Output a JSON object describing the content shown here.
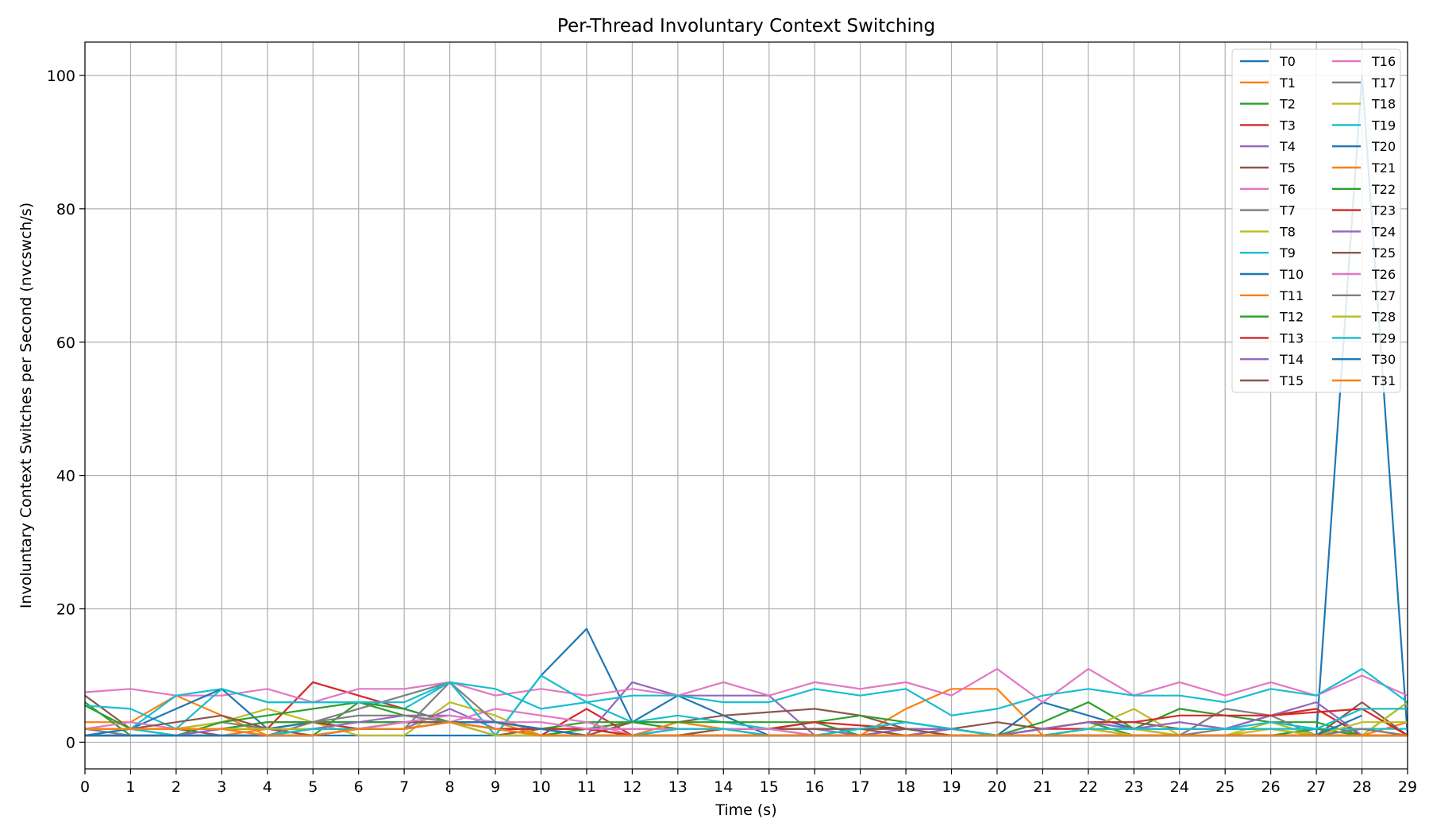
{
  "chart_data": {
    "type": "line",
    "title": "Per-Thread Involuntary Context Switching",
    "xlabel": "Time (s)",
    "ylabel": "Involuntary Context Switches per Second (nvcswch/s)",
    "xlim": [
      0,
      29
    ],
    "ylim": [
      -4,
      105
    ],
    "xticks": [
      0,
      1,
      2,
      3,
      4,
      5,
      6,
      7,
      8,
      9,
      10,
      11,
      12,
      13,
      14,
      15,
      16,
      17,
      18,
      19,
      20,
      21,
      22,
      23,
      24,
      25,
      26,
      27,
      28,
      29
    ],
    "yticks": [
      0,
      20,
      40,
      60,
      80,
      100
    ],
    "grid": true,
    "legend_position": "top-right",
    "legend_columns": 2,
    "x": [
      0,
      1,
      2,
      3,
      4,
      5,
      6,
      7,
      8,
      9,
      10,
      11,
      12,
      13,
      14,
      15,
      16,
      17,
      18,
      19,
      20,
      21,
      22,
      23,
      24,
      25,
      26,
      27,
      28,
      29
    ],
    "series": [
      {
        "name": "T0",
        "color": "#1f77b4",
        "values": [
          1,
          1,
          1,
          1,
          1,
          1,
          1,
          1,
          1,
          1,
          10,
          17,
          3,
          7,
          4,
          1,
          1,
          1,
          1,
          1,
          1,
          6,
          4,
          2,
          1,
          1,
          1,
          1,
          100,
          1
        ]
      },
      {
        "name": "T1",
        "color": "#ff7f0e",
        "values": [
          3,
          3,
          7,
          4,
          1,
          1,
          2,
          2,
          3,
          1,
          1,
          1,
          1,
          1,
          1,
          1,
          1,
          1,
          5,
          8,
          8,
          1,
          1,
          1,
          1,
          1,
          1,
          1,
          1,
          3
        ]
      },
      {
        "name": "T2",
        "color": "#2ca02c",
        "values": [
          6,
          1,
          1,
          1,
          1,
          1,
          6,
          4,
          3,
          2,
          1,
          2,
          3,
          2,
          2,
          2,
          3,
          1,
          1,
          2,
          1,
          3,
          6,
          2,
          5,
          4,
          3,
          3,
          1,
          6
        ]
      },
      {
        "name": "T3",
        "color": "#d62728",
        "values": [
          2,
          2,
          2,
          2,
          2,
          9,
          7,
          5,
          3,
          2,
          1,
          5,
          1,
          1,
          2,
          1,
          1,
          1,
          2,
          1,
          1,
          2,
          2,
          2,
          2,
          2,
          4,
          5,
          1,
          1
        ]
      },
      {
        "name": "T4",
        "color": "#9467bd",
        "values": [
          1,
          1,
          1,
          1,
          1,
          2,
          2,
          2,
          5,
          2,
          2,
          1,
          9,
          7,
          7,
          7,
          1,
          1,
          1,
          2,
          1,
          1,
          2,
          2,
          3,
          2,
          4,
          6,
          1,
          1
        ]
      },
      {
        "name": "T5",
        "color": "#8c564b",
        "values": [
          7,
          2,
          2,
          1,
          1,
          1,
          2,
          3,
          3,
          1,
          2,
          1,
          3,
          3,
          4,
          4.5,
          5,
          4,
          2,
          2,
          3,
          2,
          3,
          3,
          2,
          2,
          2,
          1,
          6,
          1
        ]
      },
      {
        "name": "T6",
        "color": "#e377c2",
        "values": [
          7.5,
          8,
          7,
          7,
          8,
          6,
          8,
          8,
          9,
          7,
          8,
          7,
          8,
          7,
          9,
          7,
          9,
          8,
          9,
          7,
          11,
          6,
          11,
          7,
          9,
          7,
          9,
          7,
          10,
          7
        ]
      },
      {
        "name": "T7",
        "color": "#7f7f7f",
        "values": [
          2,
          2,
          2,
          3,
          2,
          3,
          5,
          7,
          9,
          1,
          1,
          1,
          1,
          1,
          1,
          1,
          1,
          1,
          1,
          1,
          1,
          1,
          1,
          1,
          1,
          5,
          4,
          1,
          2,
          1
        ]
      },
      {
        "name": "T8",
        "color": "#bcbd22",
        "values": [
          2,
          2,
          2,
          3,
          5,
          3,
          1,
          1,
          6,
          4,
          1,
          1,
          1,
          3,
          2,
          2,
          1,
          1,
          1,
          1,
          1,
          1,
          2,
          5,
          1,
          1,
          3,
          1,
          1,
          6
        ]
      },
      {
        "name": "T9",
        "color": "#17becf",
        "values": [
          5.5,
          5,
          2,
          8,
          6,
          6,
          6,
          5,
          9,
          8,
          5,
          6,
          3,
          4,
          3,
          2,
          2,
          2,
          3,
          2,
          1,
          2,
          3,
          2,
          2,
          2,
          3,
          2,
          2,
          2
        ]
      },
      {
        "name": "T10",
        "color": "#1f77b4",
        "values": [
          1,
          2,
          5,
          8,
          2,
          3,
          3,
          3,
          3,
          3,
          2,
          1,
          1,
          1,
          1,
          1,
          1,
          1,
          1,
          1,
          1,
          1,
          1,
          1,
          1,
          1,
          1,
          1,
          1,
          1
        ]
      },
      {
        "name": "T11",
        "color": "#ff7f0e",
        "values": [
          2,
          2,
          2,
          2,
          1,
          2,
          2,
          2,
          3,
          3,
          1,
          1,
          1,
          3,
          2,
          2,
          1,
          1,
          1,
          1,
          1,
          1,
          2,
          1,
          1,
          1,
          1,
          1,
          1,
          1
        ]
      },
      {
        "name": "T12",
        "color": "#2ca02c",
        "values": [
          1,
          1,
          1,
          3,
          4,
          5,
          6,
          5,
          3,
          2,
          2,
          3,
          3,
          3,
          3,
          3,
          3,
          4,
          3,
          2,
          1,
          2,
          3,
          1,
          1,
          1,
          1,
          2,
          1,
          1
        ]
      },
      {
        "name": "T13",
        "color": "#d62728",
        "values": [
          2,
          2,
          2,
          2,
          3,
          3,
          2,
          2,
          3,
          2,
          1,
          1,
          1,
          2,
          2,
          2,
          3,
          2.5,
          2,
          2,
          1,
          2,
          3,
          3,
          4,
          4,
          4,
          4.5,
          5,
          1
        ]
      },
      {
        "name": "T14",
        "color": "#9467bd",
        "values": [
          1,
          1,
          1,
          1,
          1,
          2,
          2,
          3,
          3,
          2,
          1,
          1,
          1,
          2,
          2,
          2,
          2,
          1,
          2,
          2,
          1,
          2,
          3,
          2,
          3,
          2,
          2,
          1,
          1,
          1
        ]
      },
      {
        "name": "T15",
        "color": "#8c564b",
        "values": [
          1,
          1,
          1,
          1,
          1,
          1,
          2,
          2,
          3,
          2,
          2,
          2,
          2,
          2,
          2,
          2,
          2,
          2,
          1,
          1,
          1,
          1,
          1,
          1,
          1,
          1,
          1,
          1,
          1,
          1
        ]
      },
      {
        "name": "T16",
        "color": "#e377c2",
        "values": [
          2,
          3,
          2,
          2,
          2,
          2,
          2,
          2,
          3,
          5,
          4,
          3,
          1,
          1,
          1,
          1,
          1,
          1,
          1,
          1,
          1,
          1,
          1,
          1,
          1,
          1,
          1,
          1,
          1,
          1
        ]
      },
      {
        "name": "T17",
        "color": "#7f7f7f",
        "values": [
          2,
          1,
          1,
          2,
          1,
          2,
          2,
          2,
          9,
          3,
          2,
          1,
          1,
          1,
          1,
          1,
          1,
          1,
          1,
          1,
          1,
          1,
          1,
          1,
          1,
          2,
          2,
          1,
          2,
          1
        ]
      },
      {
        "name": "T18",
        "color": "#bcbd22",
        "values": [
          1,
          1,
          1,
          1,
          1,
          2,
          2,
          2,
          3,
          3,
          2,
          2,
          1,
          2,
          2,
          2,
          1,
          1,
          1,
          1,
          1,
          1,
          2,
          2,
          1,
          1,
          2,
          1,
          3,
          3
        ]
      },
      {
        "name": "T19",
        "color": "#17becf",
        "values": [
          2,
          2,
          7,
          8,
          6,
          6,
          6,
          6,
          9,
          1,
          10,
          6,
          7,
          7,
          6,
          6,
          8,
          7,
          8,
          4,
          5,
          7,
          8,
          7,
          7,
          6,
          8,
          7,
          11,
          6
        ]
      },
      {
        "name": "T20",
        "color": "#1f77b4",
        "values": [
          1,
          2,
          2,
          2,
          2,
          2,
          2,
          3,
          3,
          3,
          2,
          1,
          1,
          1,
          1,
          1,
          1,
          1,
          1,
          1,
          1,
          1,
          1,
          1,
          1,
          1,
          1,
          1,
          1,
          1
        ]
      },
      {
        "name": "T21",
        "color": "#ff7f0e",
        "values": [
          2,
          2,
          1,
          1,
          2,
          2,
          2,
          2,
          3,
          2,
          1,
          1,
          1,
          1,
          1,
          1,
          1,
          1,
          1,
          1,
          1,
          1,
          1,
          1,
          1,
          1,
          1,
          1,
          1,
          1
        ]
      },
      {
        "name": "T22",
        "color": "#2ca02c",
        "values": [
          5.5,
          2,
          2,
          2,
          3,
          3,
          3,
          3,
          3,
          2,
          2,
          2,
          1,
          1,
          1,
          1,
          1,
          2,
          2,
          1,
          1,
          1,
          2,
          1,
          1,
          1,
          1,
          1,
          1,
          1
        ]
      },
      {
        "name": "T23",
        "color": "#d62728",
        "values": [
          2,
          2,
          2,
          2,
          2,
          2,
          2,
          2,
          3,
          2,
          2,
          2,
          1,
          1,
          1,
          1,
          1,
          1,
          1,
          1,
          1,
          1,
          1,
          1,
          1,
          1,
          1,
          1,
          1,
          1
        ]
      },
      {
        "name": "T24",
        "color": "#9467bd",
        "values": [
          1,
          1,
          1,
          2,
          2,
          2,
          3,
          4,
          4,
          3,
          2,
          1,
          1,
          1,
          1,
          1,
          1,
          1,
          1,
          1,
          1,
          1,
          1,
          1,
          1,
          1,
          1,
          1,
          1,
          1
        ]
      },
      {
        "name": "T25",
        "color": "#8c564b",
        "values": [
          2,
          2,
          3,
          4,
          2,
          1,
          2,
          3,
          3,
          2,
          1,
          1,
          1,
          1,
          2,
          2,
          2,
          2,
          2,
          1,
          1,
          1,
          1,
          1,
          1,
          1,
          1,
          1,
          1,
          1
        ]
      },
      {
        "name": "T26",
        "color": "#e377c2",
        "values": [
          2,
          2,
          1,
          1,
          1,
          1,
          2,
          3,
          4,
          3,
          3,
          2,
          2,
          2,
          2,
          2,
          1,
          1,
          1,
          1,
          1,
          1,
          2,
          1,
          1,
          1,
          1,
          1,
          1,
          1
        ]
      },
      {
        "name": "T27",
        "color": "#7f7f7f",
        "values": [
          1,
          1,
          1,
          1,
          1,
          3,
          4,
          4,
          3,
          1,
          1,
          1,
          1,
          1,
          1,
          1,
          1,
          1,
          1,
          1,
          1,
          1,
          1,
          1,
          1,
          1,
          1,
          1,
          1,
          1
        ]
      },
      {
        "name": "T28",
        "color": "#bcbd22",
        "values": [
          2,
          2,
          2,
          2,
          2,
          2,
          2,
          2,
          3,
          1,
          1,
          1,
          1,
          1,
          1,
          1,
          1,
          1,
          1,
          1,
          1,
          1,
          2,
          1,
          1,
          1,
          1,
          1,
          1,
          1
        ]
      },
      {
        "name": "T29",
        "color": "#17becf",
        "values": [
          2,
          2,
          1,
          1,
          1,
          2,
          2,
          2,
          3,
          2,
          1,
          1,
          1,
          2,
          2,
          1,
          1,
          2,
          3,
          2,
          1,
          1,
          2,
          2,
          2,
          2,
          2,
          2,
          5,
          5
        ]
      },
      {
        "name": "T30",
        "color": "#1f77b4",
        "values": [
          1,
          1,
          1,
          1,
          1,
          1,
          2,
          2,
          3,
          3,
          2,
          1,
          1,
          1,
          1,
          1,
          1,
          1,
          1,
          1,
          1,
          1,
          1,
          1,
          1,
          1,
          1,
          1,
          4,
          null
        ]
      },
      {
        "name": "T31",
        "color": "#ff7f0e",
        "values": [
          2,
          2,
          2,
          2,
          1,
          1,
          2,
          2,
          3,
          2,
          1,
          1,
          1,
          1,
          1,
          1,
          1,
          1,
          1,
          1,
          1,
          1,
          1,
          1,
          1,
          1,
          1,
          1,
          1,
          1
        ]
      }
    ]
  }
}
